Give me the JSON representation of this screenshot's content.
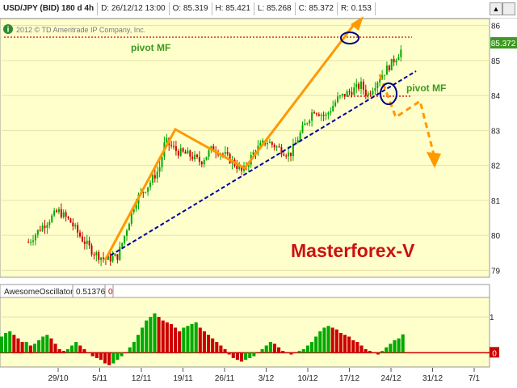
{
  "header": {
    "symbol": "USD/JPY (BID) 180 d 4h",
    "date": "D: 26/12/12 13:00",
    "open": "O: 85.319",
    "high": "H: 85.421",
    "low": "L: 85.268",
    "close": "C: 85.372",
    "range": "R: 0.153"
  },
  "copyright": "2012 © TD Ameritrade IP Company, Inc.",
  "info_icon": "i",
  "chart_data": [
    {
      "type": "line",
      "series": [
        {
          "x": [
            "2012-10-24",
            "2012-10-26",
            "2012-10-29",
            "2012-10-31",
            "2012-11-02",
            "2012-11-04",
            "2012-11-06",
            "2012-11-08",
            "2012-11-09",
            "2012-11-11",
            "2012-11-13",
            "2012-11-15",
            "2012-11-16",
            "2012-11-18",
            "2012-11-20",
            "2012-11-22",
            "2012-11-24",
            "2012-11-26",
            "2012-11-28",
            "2012-11-29",
            "2012-12-01",
            "2012-12-03",
            "2012-12-05",
            "2012-12-07",
            "2012-12-09",
            "2012-12-11",
            "2012-12-13",
            "2012-12-15",
            "2012-12-17",
            "2012-12-19",
            "2012-12-20",
            "2012-12-22",
            "2012-12-24",
            "2012-12-26"
          ],
          "values": [
            79.8,
            80.2,
            80.7,
            80.4,
            79.9,
            79.5,
            79.3,
            79.4,
            79.9,
            81.0,
            81.4,
            81.9,
            82.7,
            82.4,
            82.3,
            82.1,
            82.5,
            82.3,
            82.0,
            81.8,
            82.4,
            82.7,
            82.5,
            82.3,
            83.0,
            83.6,
            83.4,
            83.9,
            84.1,
            84.3,
            84.0,
            84.5,
            84.9,
            85.37
          ]
        }
      ],
      "ylim": [
        78.8,
        86.2
      ],
      "yticks": [
        "86",
        "85",
        "84",
        "83",
        "82",
        "81",
        "80",
        "79"
      ],
      "current_price_label": "85.372",
      "trend_lines": [
        "2012-11-06 to 2012-11-18",
        "2012-11-18 to 2012-12-03",
        "2012-12-03 to 2012-12-24"
      ],
      "annotations": [
        "pivot MF",
        "pivot MF",
        "Masterforex-V"
      ]
    },
    {
      "type": "bar",
      "title": "AwesomeOscillator",
      "value_label": "0.51376",
      "zero_label": "0",
      "yticks": [
        "1",
        "0"
      ],
      "ylim": [
        -0.4,
        1.5
      ],
      "values": [
        0.45,
        0.55,
        0.6,
        0.5,
        0.4,
        0.3,
        0.3,
        0.2,
        0.25,
        0.35,
        0.45,
        0.5,
        0.4,
        0.25,
        0.1,
        0.05,
        0.1,
        0.2,
        0.3,
        0.2,
        0.1,
        0.0,
        -0.1,
        -0.15,
        -0.2,
        -0.3,
        -0.35,
        -0.3,
        -0.2,
        -0.1,
        0.0,
        0.15,
        0.3,
        0.5,
        0.7,
        0.9,
        1.0,
        1.1,
        1.0,
        0.9,
        0.85,
        0.8,
        0.7,
        0.6,
        0.7,
        0.75,
        0.8,
        0.85,
        0.7,
        0.6,
        0.5,
        0.4,
        0.3,
        0.2,
        0.1,
        -0.05,
        -0.15,
        -0.2,
        -0.25,
        -0.2,
        -0.15,
        -0.1,
        0.0,
        0.1,
        0.2,
        0.3,
        0.25,
        0.15,
        0.05,
        0.0,
        -0.05,
        0.0,
        0.05,
        0.1,
        0.2,
        0.3,
        0.45,
        0.6,
        0.7,
        0.75,
        0.7,
        0.65,
        0.55,
        0.5,
        0.45,
        0.35,
        0.3,
        0.2,
        0.1,
        0.05,
        0.0,
        -0.05,
        0.05,
        0.15,
        0.25,
        0.35,
        0.4,
        0.51376
      ]
    }
  ],
  "x_labels": [
    "29/10",
    "5/11",
    "12/11",
    "19/11",
    "26/11",
    "3/12",
    "10/12",
    "17/12",
    "24/12",
    "31/12",
    "7/1"
  ],
  "colors": {
    "bg": "#ffffcc",
    "up": "#00aa00",
    "down": "#cc0000",
    "trend": "#ff9900",
    "support": "#000099",
    "pivot_text": "#3c9a1e",
    "brand": "#cc1111",
    "oval": "#000080"
  }
}
